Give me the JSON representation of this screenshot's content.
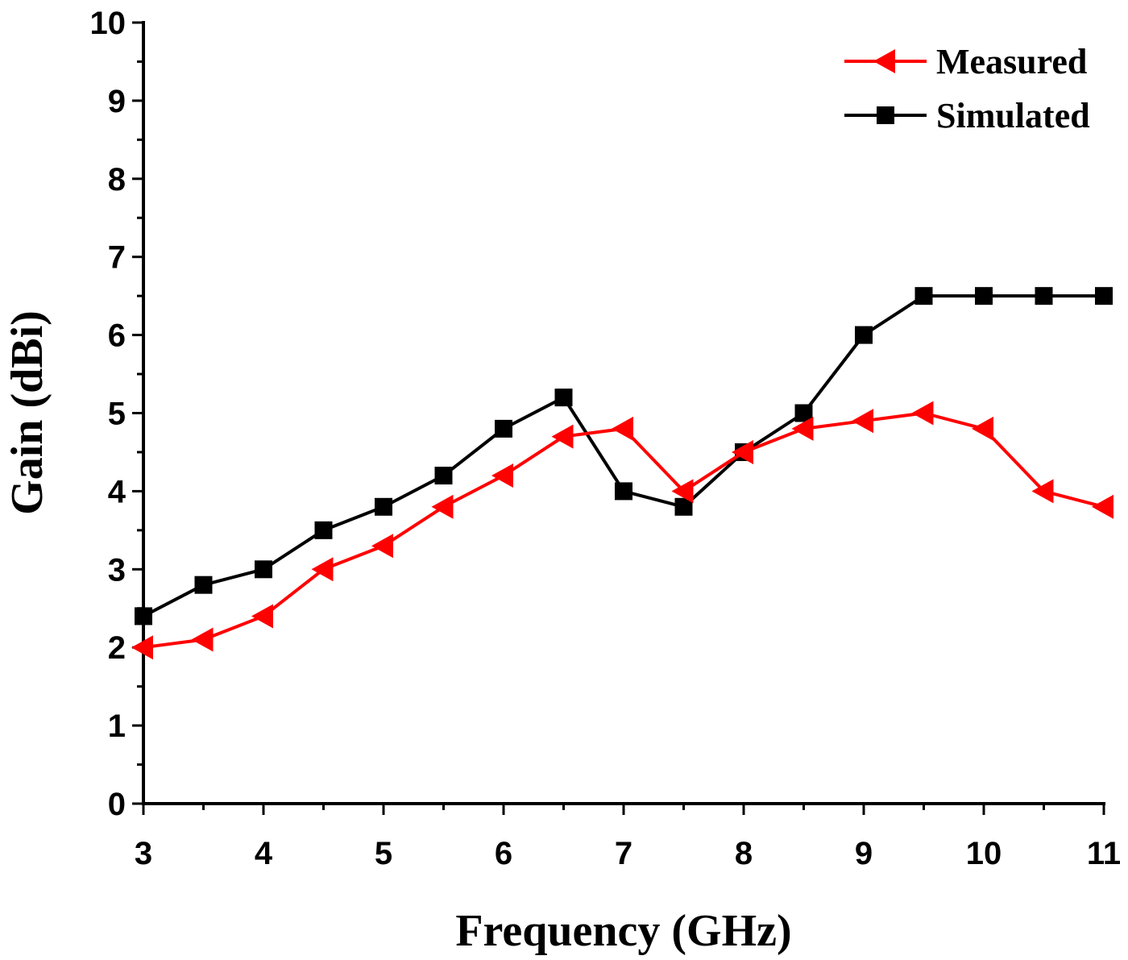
{
  "chart_data": {
    "type": "line",
    "title": "",
    "xlabel": "Frequency (GHz)",
    "ylabel": "Gain (dBi)",
    "xlim": [
      3,
      11
    ],
    "ylim": [
      0,
      10
    ],
    "xticks": [
      "3",
      "4",
      "5",
      "6",
      "7",
      "8",
      "9",
      "10",
      "11"
    ],
    "yticks": [
      "0",
      "1",
      "2",
      "3",
      "4",
      "5",
      "6",
      "7",
      "8",
      "9",
      "10"
    ],
    "grid": false,
    "legend_position": "top-right",
    "x": [
      3,
      3.5,
      4,
      4.5,
      5,
      5.5,
      6,
      6.5,
      7,
      7.5,
      8,
      8.5,
      9,
      9.5,
      10,
      10.5,
      11
    ],
    "series": [
      {
        "name": "Measured",
        "color": "#ff0000",
        "marker": "triangle-left",
        "values": [
          2.0,
          2.1,
          2.4,
          3.0,
          3.3,
          3.8,
          4.2,
          4.7,
          4.8,
          4.0,
          4.5,
          4.8,
          4.9,
          5.0,
          4.8,
          4.0,
          3.8
        ]
      },
      {
        "name": "Simulated",
        "color": "#000000",
        "marker": "square",
        "values": [
          2.4,
          2.8,
          3.0,
          3.5,
          3.8,
          4.2,
          4.8,
          5.2,
          4.0,
          3.8,
          4.5,
          5.0,
          6.0,
          6.5,
          6.5,
          6.5,
          6.5
        ]
      }
    ]
  }
}
